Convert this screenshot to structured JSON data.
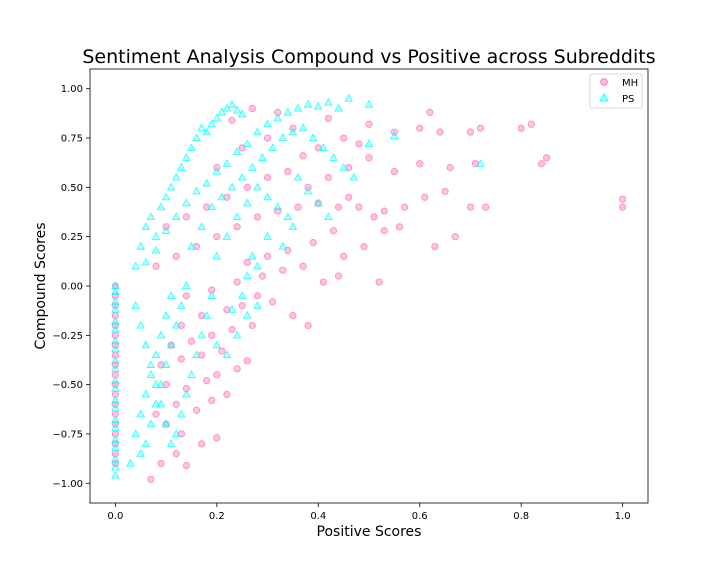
{
  "chart_data": {
    "type": "scatter",
    "title": "Sentiment Analysis Compound vs Positive across Subreddits",
    "xlabel": "Positive Scores",
    "ylabel": "Compound Scores",
    "xlim": [
      -0.05,
      1.05
    ],
    "ylim": [
      -1.1,
      1.1
    ],
    "xticks": [
      0.0,
      0.2,
      0.4,
      0.6,
      0.8,
      1.0
    ],
    "xtick_labels": [
      "0.0",
      "0.2",
      "0.4",
      "0.6",
      "0.8",
      "1.0"
    ],
    "yticks": [
      -1.0,
      -0.75,
      -0.5,
      -0.25,
      0.0,
      0.25,
      0.5,
      0.75,
      1.0
    ],
    "ytick_labels": [
      "−1.00",
      "−0.75",
      "−0.50",
      "−0.25",
      "0.00",
      "0.25",
      "0.50",
      "0.75",
      "1.00"
    ],
    "grid": false,
    "legend_position": "top-right",
    "series": [
      {
        "name": "MH",
        "marker": "circle",
        "color": "#ff69b4",
        "points": [
          [
            0.0,
            0.0
          ],
          [
            0.0,
            -0.05
          ],
          [
            0.0,
            -0.1
          ],
          [
            0.0,
            -0.15
          ],
          [
            0.0,
            -0.2
          ],
          [
            0.0,
            -0.25
          ],
          [
            0.0,
            -0.3
          ],
          [
            0.0,
            -0.35
          ],
          [
            0.0,
            -0.4
          ],
          [
            0.0,
            -0.45
          ],
          [
            0.0,
            -0.5
          ],
          [
            0.0,
            -0.55
          ],
          [
            0.0,
            -0.6
          ],
          [
            0.0,
            -0.65
          ],
          [
            0.0,
            -0.7
          ],
          [
            0.0,
            -0.75
          ],
          [
            0.0,
            -0.8
          ],
          [
            0.0,
            -0.85
          ],
          [
            0.0,
            -0.9
          ],
          [
            0.07,
            -0.98
          ],
          [
            0.09,
            -0.9
          ],
          [
            0.14,
            -0.91
          ],
          [
            0.12,
            -0.85
          ],
          [
            0.17,
            -0.8
          ],
          [
            0.2,
            -0.77
          ],
          [
            0.1,
            -0.7
          ],
          [
            0.13,
            -0.75
          ],
          [
            0.08,
            -0.65
          ],
          [
            0.12,
            -0.6
          ],
          [
            0.16,
            -0.63
          ],
          [
            0.19,
            -0.58
          ],
          [
            0.22,
            -0.55
          ],
          [
            0.1,
            -0.5
          ],
          [
            0.14,
            -0.52
          ],
          [
            0.18,
            -0.48
          ],
          [
            0.2,
            -0.45
          ],
          [
            0.24,
            -0.42
          ],
          [
            0.09,
            -0.4
          ],
          [
            0.13,
            -0.37
          ],
          [
            0.17,
            -0.35
          ],
          [
            0.21,
            -0.33
          ],
          [
            0.26,
            -0.38
          ],
          [
            0.11,
            -0.3
          ],
          [
            0.15,
            -0.28
          ],
          [
            0.19,
            -0.25
          ],
          [
            0.23,
            -0.22
          ],
          [
            0.27,
            -0.2
          ],
          [
            0.13,
            -0.2
          ],
          [
            0.17,
            -0.15
          ],
          [
            0.22,
            -0.12
          ],
          [
            0.25,
            -0.1
          ],
          [
            0.28,
            -0.05
          ],
          [
            0.31,
            -0.08
          ],
          [
            0.35,
            -0.15
          ],
          [
            0.38,
            -0.2
          ],
          [
            0.14,
            -0.05
          ],
          [
            0.19,
            -0.02
          ],
          [
            0.24,
            0.02
          ],
          [
            0.29,
            0.05
          ],
          [
            0.33,
            0.08
          ],
          [
            0.37,
            0.1
          ],
          [
            0.41,
            0.02
          ],
          [
            0.44,
            0.05
          ],
          [
            0.52,
            0.02
          ],
          [
            0.08,
            0.1
          ],
          [
            0.12,
            0.15
          ],
          [
            0.16,
            0.2
          ],
          [
            0.2,
            0.25
          ],
          [
            0.24,
            0.3
          ],
          [
            0.28,
            0.35
          ],
          [
            0.32,
            0.38
          ],
          [
            0.36,
            0.4
          ],
          [
            0.4,
            0.42
          ],
          [
            0.44,
            0.4
          ],
          [
            0.48,
            0.4
          ],
          [
            0.53,
            0.38
          ],
          [
            0.57,
            0.4
          ],
          [
            0.61,
            0.45
          ],
          [
            0.65,
            0.48
          ],
          [
            0.7,
            0.4
          ],
          [
            0.73,
            0.4
          ],
          [
            1.0,
            0.4
          ],
          [
            1.0,
            0.44
          ],
          [
            0.1,
            0.3
          ],
          [
            0.14,
            0.35
          ],
          [
            0.18,
            0.4
          ],
          [
            0.22,
            0.45
          ],
          [
            0.26,
            0.5
          ],
          [
            0.3,
            0.55
          ],
          [
            0.34,
            0.58
          ],
          [
            0.38,
            0.5
          ],
          [
            0.42,
            0.55
          ],
          [
            0.46,
            0.6
          ],
          [
            0.5,
            0.65
          ],
          [
            0.55,
            0.58
          ],
          [
            0.6,
            0.62
          ],
          [
            0.66,
            0.6
          ],
          [
            0.71,
            0.62
          ],
          [
            0.84,
            0.62
          ],
          [
            0.85,
            0.65
          ],
          [
            0.2,
            0.6
          ],
          [
            0.25,
            0.7
          ],
          [
            0.3,
            0.75
          ],
          [
            0.35,
            0.8
          ],
          [
            0.4,
            0.7
          ],
          [
            0.45,
            0.75
          ],
          [
            0.5,
            0.82
          ],
          [
            0.55,
            0.78
          ],
          [
            0.6,
            0.8
          ],
          [
            0.64,
            0.78
          ],
          [
            0.7,
            0.78
          ],
          [
            0.72,
            0.8
          ],
          [
            0.8,
            0.8
          ],
          [
            0.82,
            0.82
          ],
          [
            0.62,
            0.88
          ],
          [
            0.48,
            0.72
          ],
          [
            0.27,
            0.9
          ],
          [
            0.32,
            0.88
          ],
          [
            0.42,
            0.85
          ],
          [
            0.23,
            0.84
          ],
          [
            0.37,
            0.66
          ],
          [
            0.46,
            0.45
          ],
          [
            0.51,
            0.35
          ],
          [
            0.56,
            0.3
          ],
          [
            0.63,
            0.2
          ],
          [
            0.67,
            0.25
          ],
          [
            0.43,
            0.28
          ],
          [
            0.39,
            0.22
          ],
          [
            0.34,
            0.18
          ],
          [
            0.3,
            0.15
          ],
          [
            0.26,
            0.12
          ],
          [
            0.45,
            0.15
          ],
          [
            0.49,
            0.2
          ],
          [
            0.53,
            0.28
          ]
        ]
      },
      {
        "name": "PS",
        "marker": "triangle",
        "color": "#00ffff",
        "points": [
          [
            0.0,
            0.0
          ],
          [
            0.0,
            -0.03
          ],
          [
            0.0,
            -0.08
          ],
          [
            0.0,
            -0.12
          ],
          [
            0.0,
            -0.18
          ],
          [
            0.0,
            -0.22
          ],
          [
            0.0,
            -0.28
          ],
          [
            0.0,
            -0.32
          ],
          [
            0.0,
            -0.38
          ],
          [
            0.0,
            -0.42
          ],
          [
            0.0,
            -0.48
          ],
          [
            0.0,
            -0.52
          ],
          [
            0.0,
            -0.58
          ],
          [
            0.0,
            -0.62
          ],
          [
            0.0,
            -0.68
          ],
          [
            0.0,
            -0.72
          ],
          [
            0.0,
            -0.78
          ],
          [
            0.0,
            -0.82
          ],
          [
            0.0,
            -0.88
          ],
          [
            0.0,
            -0.92
          ],
          [
            0.0,
            -0.96
          ],
          [
            0.03,
            -0.9
          ],
          [
            0.05,
            -0.85
          ],
          [
            0.06,
            -0.8
          ],
          [
            0.04,
            -0.75
          ],
          [
            0.07,
            -0.7
          ],
          [
            0.05,
            -0.65
          ],
          [
            0.08,
            -0.6
          ],
          [
            0.06,
            -0.55
          ],
          [
            0.09,
            -0.5
          ],
          [
            0.07,
            -0.45
          ],
          [
            0.1,
            -0.4
          ],
          [
            0.08,
            -0.35
          ],
          [
            0.11,
            -0.3
          ],
          [
            0.09,
            -0.25
          ],
          [
            0.12,
            -0.2
          ],
          [
            0.1,
            -0.15
          ],
          [
            0.13,
            -0.1
          ],
          [
            0.11,
            -0.05
          ],
          [
            0.14,
            0.0
          ],
          [
            0.04,
            -0.1
          ],
          [
            0.05,
            -0.2
          ],
          [
            0.06,
            -0.3
          ],
          [
            0.07,
            -0.4
          ],
          [
            0.08,
            -0.5
          ],
          [
            0.09,
            -0.6
          ],
          [
            0.1,
            -0.7
          ],
          [
            0.11,
            -0.8
          ],
          [
            0.12,
            -0.75
          ],
          [
            0.13,
            -0.65
          ],
          [
            0.14,
            -0.55
          ],
          [
            0.15,
            -0.45
          ],
          [
            0.16,
            -0.35
          ],
          [
            0.17,
            -0.25
          ],
          [
            0.18,
            -0.15
          ],
          [
            0.19,
            -0.05
          ],
          [
            0.2,
            -0.3
          ],
          [
            0.22,
            -0.35
          ],
          [
            0.24,
            -0.25
          ],
          [
            0.26,
            -0.15
          ],
          [
            0.28,
            -0.1
          ],
          [
            0.04,
            0.1
          ],
          [
            0.05,
            0.2
          ],
          [
            0.06,
            0.3
          ],
          [
            0.07,
            0.35
          ],
          [
            0.08,
            0.25
          ],
          [
            0.09,
            0.4
          ],
          [
            0.1,
            0.45
          ],
          [
            0.11,
            0.5
          ],
          [
            0.12,
            0.55
          ],
          [
            0.13,
            0.6
          ],
          [
            0.14,
            0.65
          ],
          [
            0.15,
            0.7
          ],
          [
            0.16,
            0.75
          ],
          [
            0.17,
            0.8
          ],
          [
            0.18,
            0.78
          ],
          [
            0.19,
            0.82
          ],
          [
            0.2,
            0.85
          ],
          [
            0.21,
            0.88
          ],
          [
            0.22,
            0.9
          ],
          [
            0.23,
            0.92
          ],
          [
            0.24,
            0.89
          ],
          [
            0.25,
            0.87
          ],
          [
            0.06,
            0.12
          ],
          [
            0.08,
            0.18
          ],
          [
            0.1,
            0.28
          ],
          [
            0.12,
            0.35
          ],
          [
            0.14,
            0.42
          ],
          [
            0.16,
            0.48
          ],
          [
            0.18,
            0.52
          ],
          [
            0.2,
            0.58
          ],
          [
            0.22,
            0.62
          ],
          [
            0.24,
            0.68
          ],
          [
            0.26,
            0.72
          ],
          [
            0.28,
            0.78
          ],
          [
            0.3,
            0.82
          ],
          [
            0.32,
            0.85
          ],
          [
            0.34,
            0.88
          ],
          [
            0.36,
            0.9
          ],
          [
            0.38,
            0.92
          ],
          [
            0.4,
            0.91
          ],
          [
            0.42,
            0.93
          ],
          [
            0.44,
            0.9
          ],
          [
            0.46,
            0.95
          ],
          [
            0.5,
            0.92
          ],
          [
            0.15,
            0.2
          ],
          [
            0.17,
            0.3
          ],
          [
            0.19,
            0.4
          ],
          [
            0.21,
            0.45
          ],
          [
            0.23,
            0.5
          ],
          [
            0.25,
            0.55
          ],
          [
            0.27,
            0.6
          ],
          [
            0.29,
            0.65
          ],
          [
            0.31,
            0.7
          ],
          [
            0.33,
            0.75
          ],
          [
            0.35,
            0.78
          ],
          [
            0.37,
            0.8
          ],
          [
            0.39,
            0.75
          ],
          [
            0.41,
            0.7
          ],
          [
            0.43,
            0.65
          ],
          [
            0.45,
            0.6
          ],
          [
            0.47,
            0.55
          ],
          [
            0.2,
            0.15
          ],
          [
            0.22,
            0.25
          ],
          [
            0.24,
            0.35
          ],
          [
            0.26,
            0.42
          ],
          [
            0.28,
            0.5
          ],
          [
            0.3,
            0.45
          ],
          [
            0.32,
            0.4
          ],
          [
            0.34,
            0.35
          ],
          [
            0.36,
            0.55
          ],
          [
            0.38,
            0.48
          ],
          [
            0.4,
            0.42
          ],
          [
            0.42,
            0.35
          ],
          [
            0.3,
            0.25
          ],
          [
            0.28,
            0.1
          ],
          [
            0.26,
            0.05
          ],
          [
            0.25,
            -0.05
          ],
          [
            0.23,
            -0.12
          ],
          [
            0.55,
            0.76
          ],
          [
            0.5,
            0.72
          ],
          [
            0.72,
            0.62
          ],
          [
            0.35,
            0.3
          ],
          [
            0.33,
            0.2
          ],
          [
            0.27,
            0.15
          ]
        ]
      }
    ]
  }
}
